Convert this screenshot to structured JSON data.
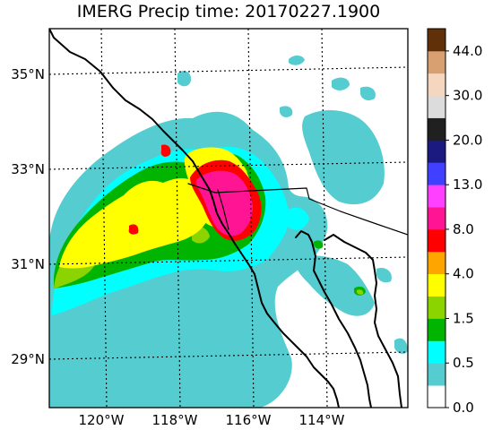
{
  "title": "IMERG Precip time: 20170227.1900",
  "axes": {
    "lon_ticks": [
      {
        "value": -120,
        "label": "120°W"
      },
      {
        "value": -118,
        "label": "118°W"
      },
      {
        "value": -116,
        "label": "116°W"
      },
      {
        "value": -114,
        "label": "114°W"
      }
    ],
    "lat_ticks": [
      {
        "value": 35,
        "label": "35°N"
      },
      {
        "value": 33,
        "label": "33°N"
      },
      {
        "value": 31,
        "label": "31°N"
      },
      {
        "value": 29,
        "label": "29°N"
      }
    ]
  },
  "colorbar": {
    "levels": [
      "0.0",
      "0.5",
      "1.5",
      "4.0",
      "8.0",
      "13.0",
      "20.0",
      "30.0",
      "44.0"
    ],
    "colors": [
      "#ffffff",
      "#55ccd0",
      "#00ffff",
      "#00b400",
      "#8cd400",
      "#ffff00",
      "#ffa500",
      "#ff0000",
      "#ff1493",
      "#ff40ff",
      "#4040ff",
      "#1a1a80",
      "#202020",
      "#dcdcdc",
      "#f5d7c0",
      "#d8a070",
      "#603008"
    ]
  },
  "precip_palette": {
    "very_light": "#55ccd0",
    "light": "#00ffff",
    "moderate_low": "#00b400",
    "moderate": "#8cd400",
    "heavy": "#ffff00",
    "very_heavy": "#ff0000",
    "extreme": "#ff1493"
  }
}
